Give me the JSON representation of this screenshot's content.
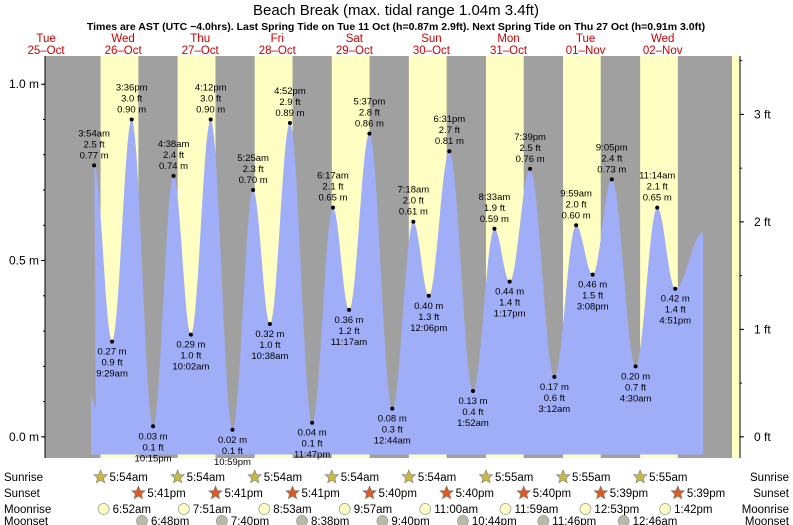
{
  "header": {
    "title": "Beach Break (max. tidal range 1.04m 3.4ft)",
    "subtitle": "Times are AST (UTC −4.0hrs). Last Spring Tide on Tue 11 Oct (h=0.87m 2.9ft). Next Spring Tide on Thu 27 Oct (h=0.91m 3.0ft)"
  },
  "days": [
    {
      "name": "Tue",
      "date": "25–Oct"
    },
    {
      "name": "Wed",
      "date": "26–Oct"
    },
    {
      "name": "Thu",
      "date": "27–Oct"
    },
    {
      "name": "Fri",
      "date": "28–Oct"
    },
    {
      "name": "Sat",
      "date": "29–Oct"
    },
    {
      "name": "Sun",
      "date": "30–Oct"
    },
    {
      "name": "Mon",
      "date": "31–Oct"
    },
    {
      "name": "Tue",
      "date": "01–Nov"
    },
    {
      "name": "Wed",
      "date": "02–Nov"
    }
  ],
  "colors": {
    "night": "#a0a0a0",
    "day": "#ffffc4",
    "water": "#a0aef8",
    "day_label": "#cc0000",
    "sun": "#c8b940",
    "sunset": "#dd5a20",
    "moonrise": "#fffcc4",
    "moonset": "#b9b9a8"
  },
  "chart_data": {
    "type": "area",
    "title": "Beach Break (max. tidal range 1.04m 3.4ft)",
    "left_axis": {
      "unit": "m",
      "ticks": [
        "1.0 m",
        "0.5 m",
        "0.0 m"
      ],
      "values": [
        1.0,
        0.5,
        0.0
      ]
    },
    "right_axis": {
      "unit": "ft",
      "ticks": [
        "3 ft",
        "2 ft",
        "1 ft",
        "0 ft"
      ],
      "values": [
        3,
        2,
        1,
        0
      ]
    },
    "ylim_m": [
      -0.06,
      1.08
    ],
    "series": [
      {
        "name": "",
        "points": [
          {
            "day": 1,
            "time": "3:54 am",
            "m": 0.77,
            "ft": 2.5,
            "mlabel": "0.77 m",
            "ftlabel": "2.5 ft",
            "kind": "high"
          },
          {
            "day": 1,
            "time": "9:29 am",
            "m": 0.27,
            "ft": 0.9,
            "mlabel": "0.27 m",
            "ftlabel": "0.9 ft",
            "kind": "low"
          },
          {
            "day": 1,
            "time": "3:36 pm",
            "m": 0.9,
            "ft": 3.0,
            "mlabel": "0.90 m",
            "ftlabel": "3.0 ft",
            "kind": "high"
          },
          {
            "day": 1,
            "time": "10:15 pm",
            "m": 0.03,
            "ft": 0.1,
            "mlabel": "0.03 m",
            "ftlabel": "0.1 ft",
            "kind": "low"
          },
          {
            "day": 2,
            "time": "4:38 am",
            "m": 0.74,
            "ft": 2.4,
            "mlabel": "0.74 m",
            "ftlabel": "2.4 ft",
            "kind": "high"
          },
          {
            "day": 2,
            "time": "10:02 am",
            "m": 0.29,
            "ft": 1.0,
            "mlabel": "0.29 m",
            "ftlabel": "1.0 ft",
            "kind": "low"
          },
          {
            "day": 2,
            "time": "4:12 pm",
            "m": 0.9,
            "ft": 3.0,
            "mlabel": "0.90 m",
            "ftlabel": "3.0 ft",
            "kind": "high"
          },
          {
            "day": 2,
            "time": "10:59 pm",
            "m": 0.02,
            "ft": 0.1,
            "mlabel": "0.02 m",
            "ftlabel": "0.1 ft",
            "kind": "low"
          },
          {
            "day": 3,
            "time": "5:25 am",
            "m": 0.7,
            "ft": 2.3,
            "mlabel": "0.70 m",
            "ftlabel": "2.3 ft",
            "kind": "high"
          },
          {
            "day": 3,
            "time": "10:38 am",
            "m": 0.32,
            "ft": 1.0,
            "mlabel": "0.32 m",
            "ftlabel": "1.0 ft",
            "kind": "low"
          },
          {
            "day": 3,
            "time": "4:52 pm",
            "m": 0.89,
            "ft": 2.9,
            "mlabel": "0.89 m",
            "ftlabel": "2.9 ft",
            "kind": "high"
          },
          {
            "day": 3,
            "time": "11:47 pm",
            "m": 0.04,
            "ft": 0.1,
            "mlabel": "0.04 m",
            "ftlabel": "0.1 ft",
            "kind": "low"
          },
          {
            "day": 4,
            "time": "6:17 am",
            "m": 0.65,
            "ft": 2.1,
            "mlabel": "0.65 m",
            "ftlabel": "2.1 ft",
            "kind": "high"
          },
          {
            "day": 4,
            "time": "11:17 am",
            "m": 0.36,
            "ft": 1.2,
            "mlabel": "0.36 m",
            "ftlabel": "1.2 ft",
            "kind": "low"
          },
          {
            "day": 4,
            "time": "5:37 pm",
            "m": 0.86,
            "ft": 2.8,
            "mlabel": "0.86 m",
            "ftlabel": "2.8 ft",
            "kind": "high"
          },
          {
            "day": 5,
            "time": "12:44 am",
            "m": 0.08,
            "ft": 0.3,
            "mlabel": "0.08 m",
            "ftlabel": "0.3 ft",
            "kind": "low"
          },
          {
            "day": 5,
            "time": "7:18 am",
            "m": 0.61,
            "ft": 2.0,
            "mlabel": "0.61 m",
            "ftlabel": "2.0 ft",
            "kind": "high"
          },
          {
            "day": 5,
            "time": "12:06 pm",
            "m": 0.4,
            "ft": 1.3,
            "mlabel": "0.40 m",
            "ftlabel": "1.3 ft",
            "kind": "low"
          },
          {
            "day": 5,
            "time": "6:31 pm",
            "m": 0.81,
            "ft": 2.7,
            "mlabel": "0.81 m",
            "ftlabel": "2.7 ft",
            "kind": "high"
          },
          {
            "day": 6,
            "time": "1:52 am",
            "m": 0.13,
            "ft": 0.4,
            "mlabel": "0.13 m",
            "ftlabel": "0.4 ft",
            "kind": "low"
          },
          {
            "day": 6,
            "time": "8:33 am",
            "m": 0.59,
            "ft": 1.9,
            "mlabel": "0.59 m",
            "ftlabel": "1.9 ft",
            "kind": "high"
          },
          {
            "day": 6,
            "time": "1:17 pm",
            "m": 0.44,
            "ft": 1.4,
            "mlabel": "0.44 m",
            "ftlabel": "1.4 ft",
            "kind": "low"
          },
          {
            "day": 6,
            "time": "7:39 pm",
            "m": 0.76,
            "ft": 2.5,
            "mlabel": "0.76 m",
            "ftlabel": "2.5 ft",
            "kind": "high"
          },
          {
            "day": 7,
            "time": "3:12 am",
            "m": 0.17,
            "ft": 0.6,
            "mlabel": "0.17 m",
            "ftlabel": "0.6 ft",
            "kind": "low"
          },
          {
            "day": 7,
            "time": "9:59 am",
            "m": 0.6,
            "ft": 2.0,
            "mlabel": "0.60 m",
            "ftlabel": "2.0 ft",
            "kind": "high"
          },
          {
            "day": 7,
            "time": "3:08 pm",
            "m": 0.46,
            "ft": 1.5,
            "mlabel": "0.46 m",
            "ftlabel": "1.5 ft",
            "kind": "low"
          },
          {
            "day": 7,
            "time": "9:05 pm",
            "m": 0.73,
            "ft": 2.4,
            "mlabel": "0.73 m",
            "ftlabel": "2.4 ft",
            "kind": "high"
          },
          {
            "day": 8,
            "time": "4:30 am",
            "m": 0.2,
            "ft": 0.7,
            "mlabel": "0.20 m",
            "ftlabel": "0.7 ft",
            "kind": "low"
          },
          {
            "day": 8,
            "time": "11:14 am",
            "m": 0.65,
            "ft": 2.1,
            "mlabel": "0.65 m",
            "ftlabel": "2.1 ft",
            "kind": "high"
          },
          {
            "day": 8,
            "time": "4:51 pm",
            "m": 0.42,
            "ft": 1.4,
            "mlabel": "0.42 m",
            "ftlabel": "1.4 ft",
            "kind": "low"
          }
        ]
      }
    ],
    "legend_rows": {
      "sunrise": {
        "label": "Sunrise",
        "times": [
          "5:54am",
          "5:54am",
          "5:54am",
          "5:54am",
          "5:54am",
          "5:55am",
          "5:55am",
          "5:55am"
        ]
      },
      "sunset": {
        "label": "Sunset",
        "times": [
          "5:41pm",
          "5:41pm",
          "5:41pm",
          "5:40pm",
          "5:40pm",
          "5:40pm",
          "5:39pm",
          "5:39pm"
        ]
      },
      "moonrise": {
        "label": "Moonrise",
        "times": [
          "6:52am",
          "7:51am",
          "8:53am",
          "9:57am",
          "11:00am",
          "11:59am",
          "12:53pm",
          "1:42pm"
        ]
      },
      "moonset": {
        "label": "Moonset",
        "times": [
          "6:48pm",
          "7:40pm",
          "8:38pm",
          "9:40pm",
          "10:44pm",
          "11:46pm",
          "12:46am"
        ]
      }
    }
  }
}
